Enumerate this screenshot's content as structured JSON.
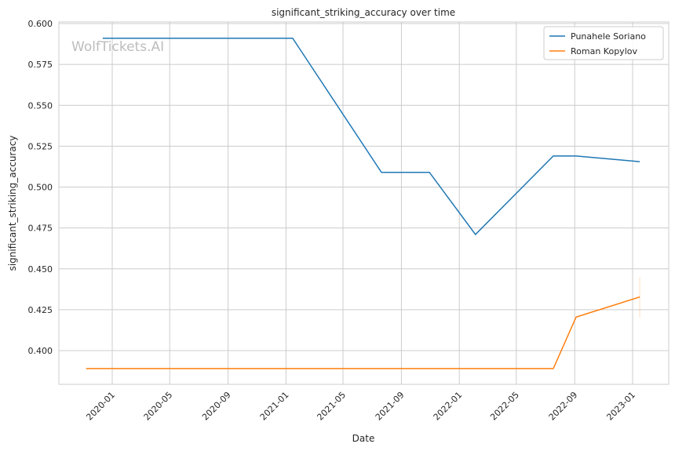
{
  "chart_data": {
    "type": "line",
    "title": "significant_striking_accuracy over time",
    "xlabel": "Date",
    "ylabel": "significant_striking_accuracy",
    "watermark": "WolfTickets.AI",
    "xlim": [
      "2019-10-09",
      "2023-02-17"
    ],
    "ylim": [
      0.3795,
      0.6005
    ],
    "xticks": [
      "2020-01",
      "2020-05",
      "2020-09",
      "2021-01",
      "2021-05",
      "2021-09",
      "2022-01",
      "2022-05",
      "2022-09",
      "2023-01"
    ],
    "yticks": [
      0.4,
      0.425,
      0.45,
      0.475,
      0.5,
      0.525,
      0.55,
      0.575,
      0.6
    ],
    "grid": true,
    "legend_position": "top-right",
    "series": [
      {
        "name": "Punahele Soriano",
        "color": "#1f77b4",
        "x": [
          "2019-12-12",
          "2021-01-15",
          "2021-07-21",
          "2021-10-30",
          "2022-02-04",
          "2022-07-18",
          "2022-09-04",
          "2023-01-16"
        ],
        "y": [
          0.591,
          0.591,
          0.509,
          0.509,
          0.471,
          0.519,
          0.519,
          0.5155
        ]
      },
      {
        "name": "Roman Kopylov",
        "color": "#ff7f0e",
        "x": [
          "2019-11-07",
          "2022-07-18",
          "2022-09-04",
          "2023-01-16"
        ],
        "y": [
          0.389,
          0.389,
          0.4205,
          0.4328
        ],
        "error_bar_last": [
          0.42,
          0.445
        ]
      }
    ]
  }
}
